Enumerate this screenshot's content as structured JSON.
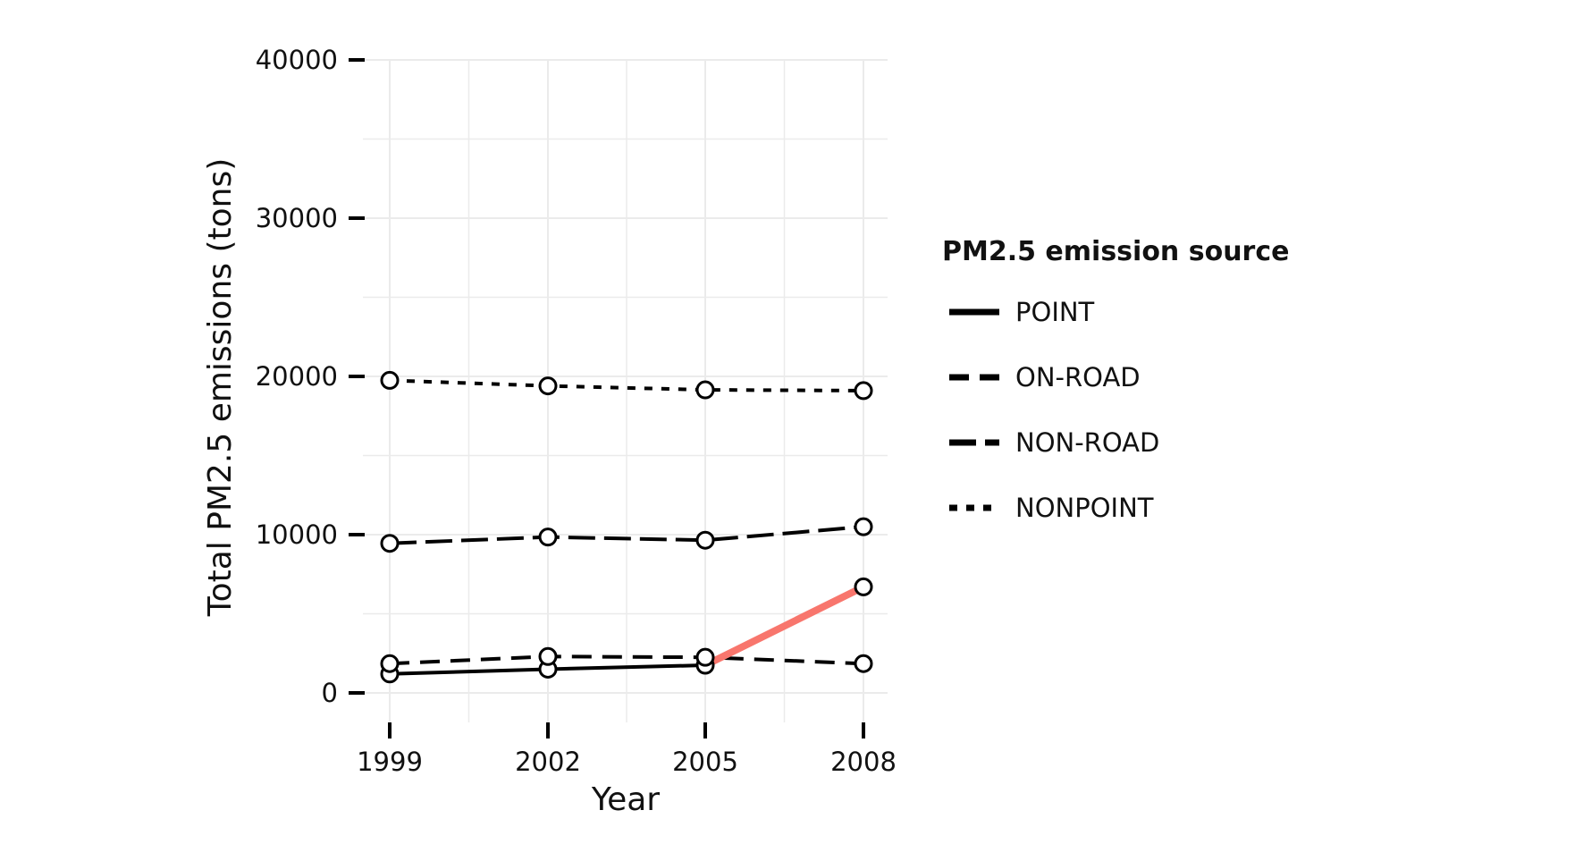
{
  "chart_data": {
    "type": "line",
    "xlabel": "Year",
    "ylabel": "Total PM2.5 emissions (tons)",
    "x": [
      1999,
      2002,
      2005,
      2008
    ],
    "ylim": [
      0,
      40000
    ],
    "yticks": [
      0,
      10000,
      20000,
      30000,
      40000
    ],
    "grid": true,
    "legend_title": "PM2.5 emission source",
    "legend_position": "right",
    "series": [
      {
        "name": "POINT",
        "values": [
          1200,
          1500,
          1750,
          6700
        ],
        "dash": "solid"
      },
      {
        "name": "ON-ROAD",
        "values": [
          1850,
          2300,
          2250,
          1850
        ],
        "dash": "dashed"
      },
      {
        "name": "NON-ROAD",
        "values": [
          9450,
          9850,
          9650,
          10500
        ],
        "dash": "longdash"
      },
      {
        "name": "NONPOINT",
        "values": [
          19750,
          19400,
          19150,
          19100
        ],
        "dash": "dotted"
      }
    ],
    "highlight": {
      "series": "POINT",
      "from_x": 2005,
      "to_x": 2008,
      "color": "#f8766d"
    },
    "colors": {
      "line": "#000000",
      "point_fill": "#ffffff",
      "grid": "#ebebeb",
      "highlight": "#f8766d"
    }
  }
}
